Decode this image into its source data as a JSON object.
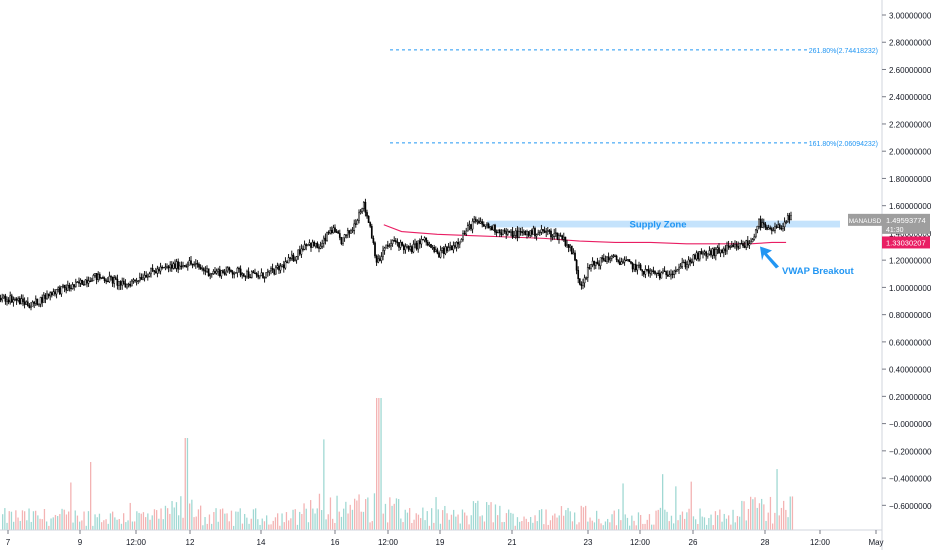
{
  "chart_data": {
    "type": "line",
    "symbol": "MANAUSD",
    "price_axis": {
      "range": [
        -0.8,
        3.1
      ],
      "tick_labels": [
        {
          "value": 3.0,
          "label": "3.00000000"
        },
        {
          "value": 2.8,
          "label": "2.80000000"
        },
        {
          "value": 2.6,
          "label": "2.60000000"
        },
        {
          "value": 2.4,
          "label": "2.40000000"
        },
        {
          "value": 2.2,
          "label": "2.20000000"
        },
        {
          "value": 2.0,
          "label": "2.00000000"
        },
        {
          "value": 1.8,
          "label": "1.80000000"
        },
        {
          "value": 1.6,
          "label": "1.60000000"
        },
        {
          "value": 1.4,
          "label": "1.40000000"
        },
        {
          "value": 1.2,
          "label": "1.20000000"
        },
        {
          "value": 1.0,
          "label": "1.00000000"
        },
        {
          "value": 0.8,
          "label": "0.80000000"
        },
        {
          "value": 0.6,
          "label": "0.60000000"
        },
        {
          "value": 0.4,
          "label": "0.40000000"
        },
        {
          "value": 0.2,
          "label": "0.20000000"
        },
        {
          "value": 0.0,
          "label": "−0.00000000"
        },
        {
          "value": -0.2,
          "label": "−0.20000000"
        },
        {
          "value": -0.4,
          "label": "−0.40000000"
        },
        {
          "value": -0.6,
          "label": "−0.60000000"
        }
      ]
    },
    "time_axis": {
      "tick_labels": [
        "7",
        "9",
        "12:00",
        "12",
        "14",
        "16",
        "12:00",
        "19",
        "21",
        "23",
        "12:00",
        "26",
        "28",
        "12:00",
        "May"
      ]
    },
    "price_series": {
      "x": [
        7.0,
        7.6,
        8.2,
        8.8,
        9.3,
        9.8,
        10.2,
        10.8,
        11.5,
        12.0,
        12.6,
        13.3,
        14.0,
        14.5,
        15.0,
        15.3,
        15.7,
        16.0,
        16.3,
        16.6,
        16.9,
        17.1,
        17.3,
        17.5,
        17.8,
        18.2,
        18.6,
        19.0,
        19.5,
        20.0,
        20.5,
        21.0,
        21.5,
        22.0,
        22.5,
        22.8,
        23.0,
        23.3,
        23.8,
        24.3,
        24.8,
        25.3,
        25.8,
        26.3,
        26.8,
        27.3,
        27.8,
        28.0,
        28.3,
        28.6,
        28.8
      ],
      "close": [
        0.92,
        0.87,
        0.97,
        1.01,
        1.08,
        1.06,
        1.01,
        1.1,
        1.15,
        1.18,
        1.11,
        1.12,
        1.08,
        1.13,
        1.23,
        1.33,
        1.29,
        1.43,
        1.34,
        1.43,
        1.62,
        1.45,
        1.17,
        1.28,
        1.34,
        1.27,
        1.35,
        1.24,
        1.32,
        1.48,
        1.44,
        1.39,
        1.4,
        1.41,
        1.37,
        1.25,
        1.02,
        1.16,
        1.22,
        1.18,
        1.12,
        1.09,
        1.15,
        1.23,
        1.26,
        1.29,
        1.33,
        1.48,
        1.41,
        1.44,
        1.5
      ]
    },
    "vwap_series": {
      "x": [
        17.5,
        18.0,
        19.0,
        20.0,
        21.0,
        22.0,
        23.0,
        24.0,
        25.0,
        26.0,
        27.0,
        27.8,
        28.4,
        28.8
      ],
      "values": [
        1.46,
        1.41,
        1.39,
        1.38,
        1.37,
        1.36,
        1.34,
        1.33,
        1.33,
        1.32,
        1.32,
        1.32,
        1.33,
        1.33
      ]
    },
    "fib_levels": [
      {
        "label": "261.80%(2.74418232)",
        "value": 2.74418232
      },
      {
        "label": "161.80%(2.06094232)",
        "value": 2.06094232
      }
    ],
    "supply_zone": {
      "label": "Supply Zone",
      "range": [
        1.44,
        1.49
      ]
    },
    "annotation": {
      "label": "VWAP Breakout"
    },
    "price_tag": {
      "symbol": "MANAUSD",
      "price": "1.49593774",
      "countdown": "41:30"
    },
    "vwap_tag": {
      "price": "1.33030207"
    },
    "colors": {
      "candle": "#000000",
      "vwap": "#e91e63",
      "fib": "#2196f3",
      "supply": "#bbdefb",
      "annotation": "#2196f3",
      "volume_up": "#80cbc4",
      "volume_down": "#ef9a9a",
      "axis_text": "#131722",
      "price_tag_bg": "#9e9e9e",
      "vwap_tag_bg": "#e91e63"
    }
  }
}
